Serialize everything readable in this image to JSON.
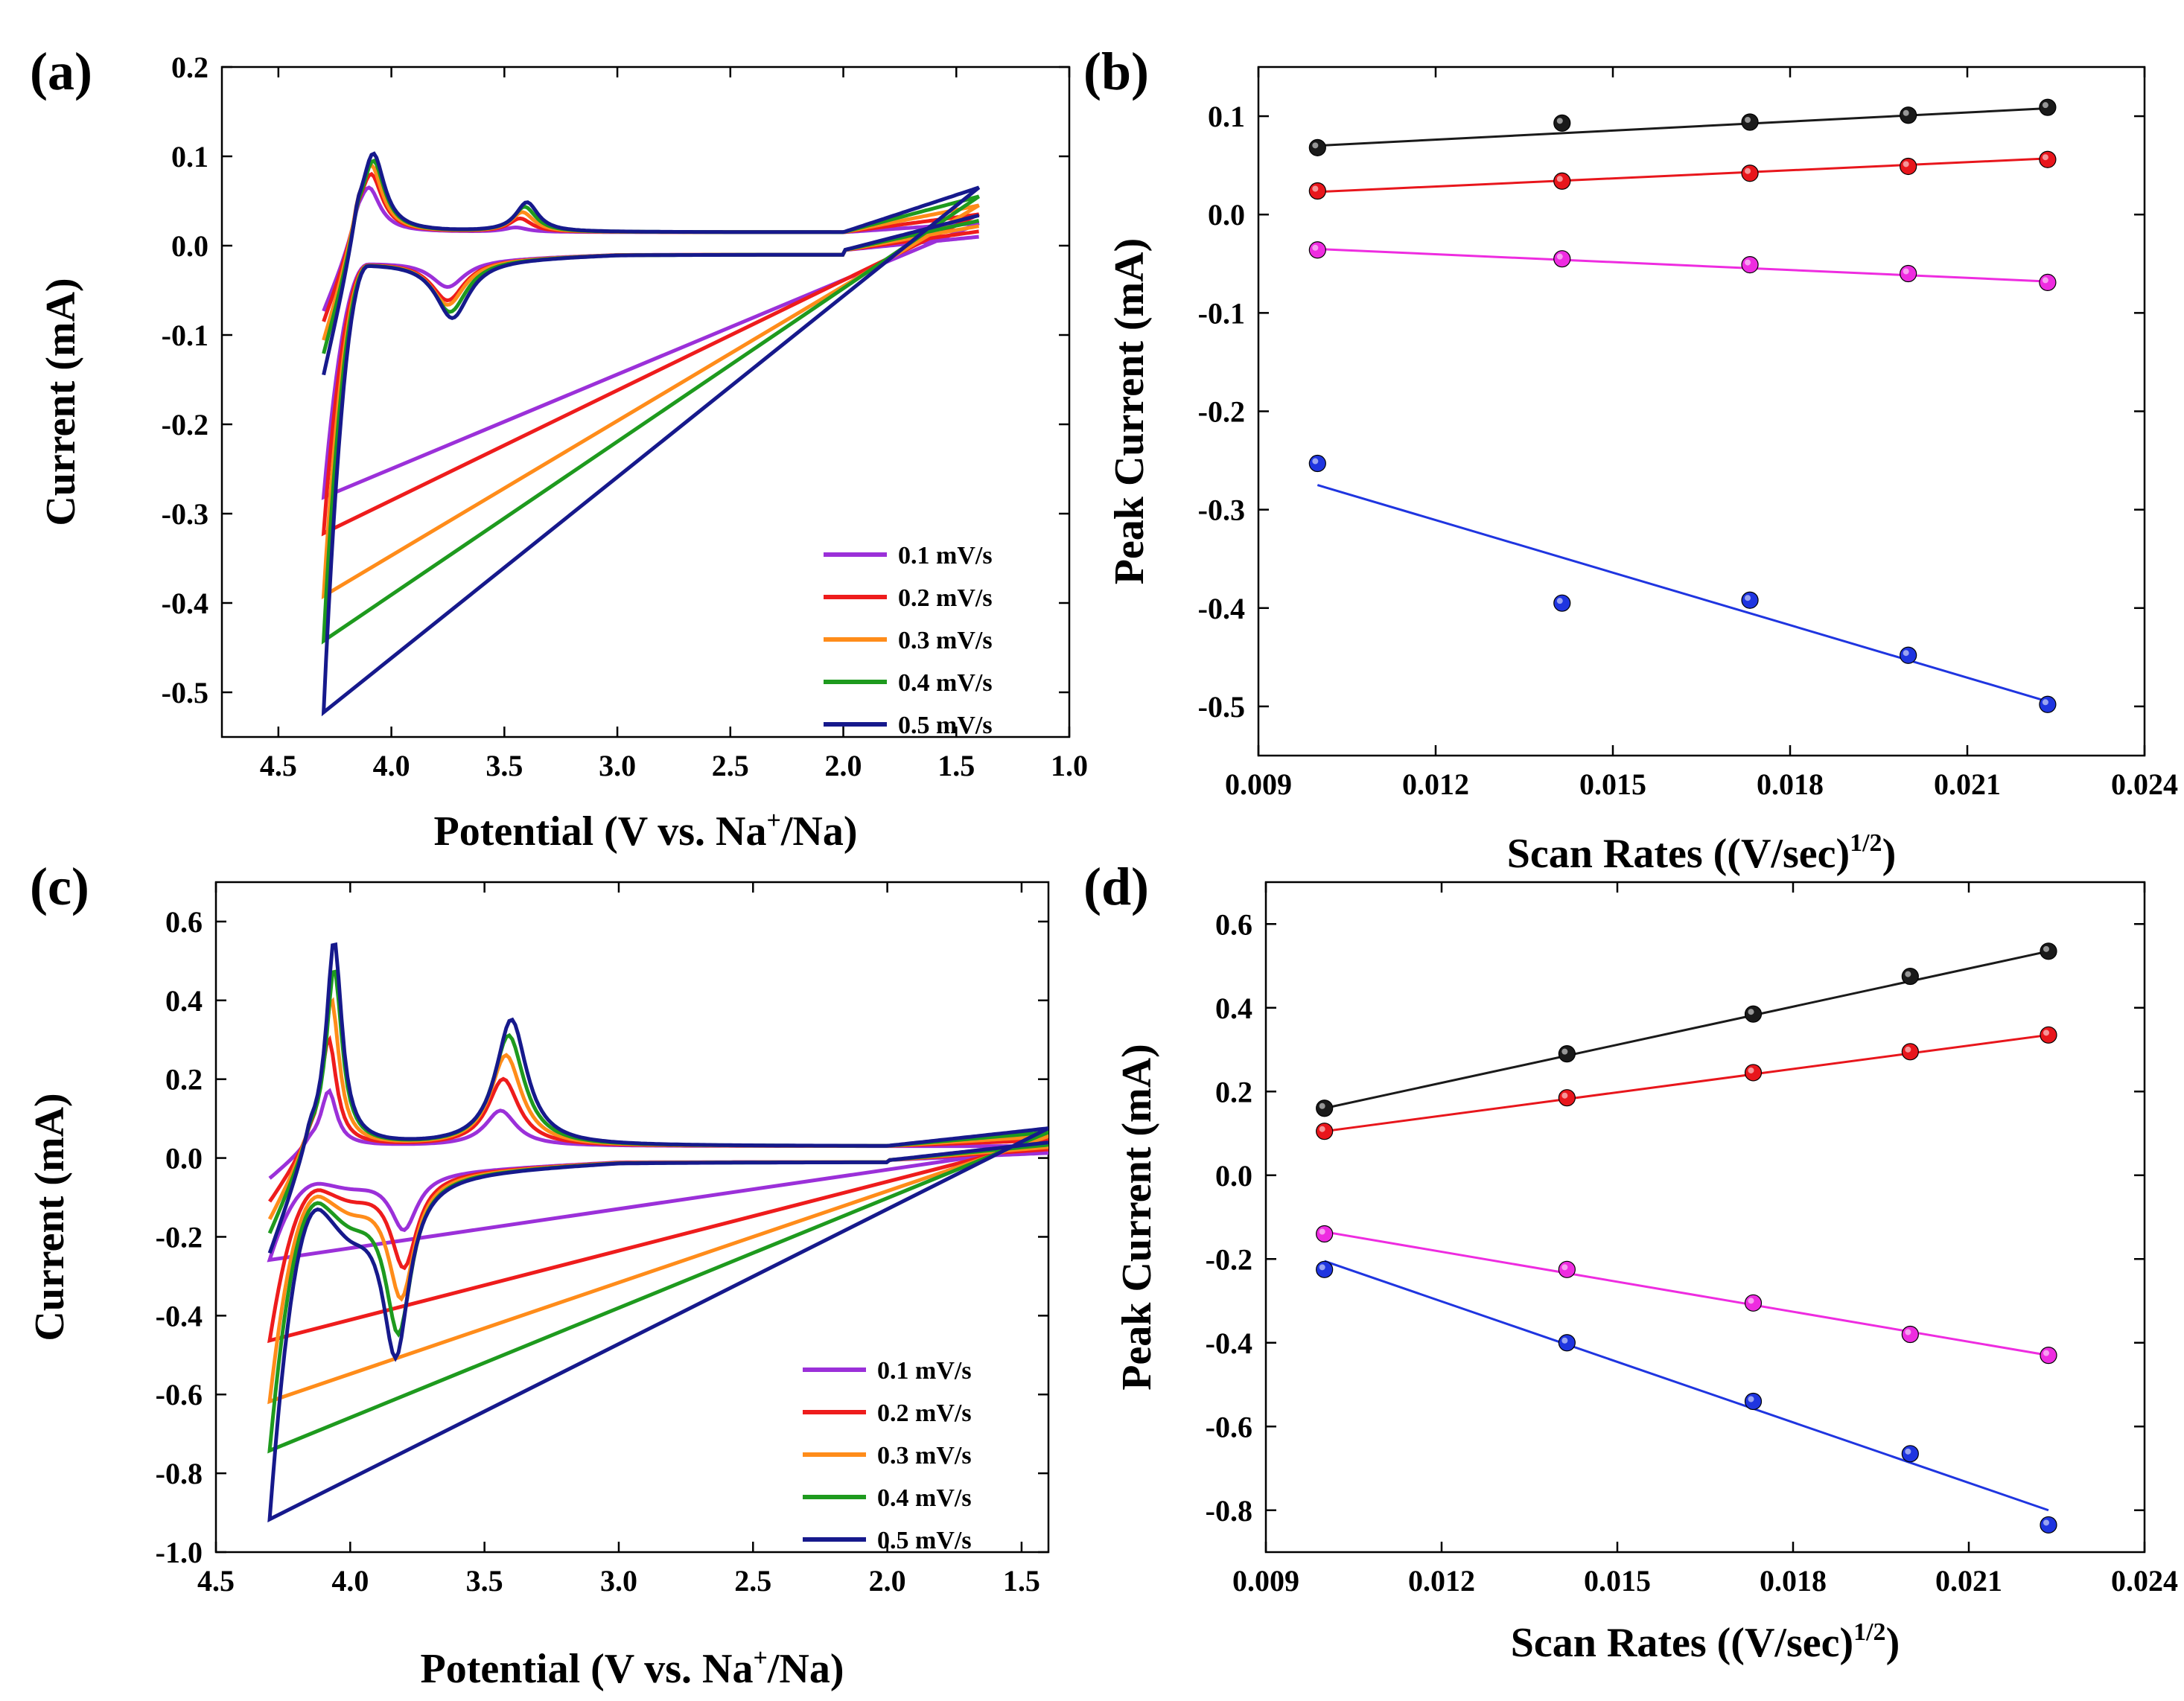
{
  "chart_data": [
    {
      "id": "a",
      "type": "line",
      "panel_label": "(a)",
      "xlabel": "Potential (V vs. Na",
      "xlabel_sup": "+",
      "xlabel_tail": "/Na)",
      "ylabel": "Current (mA)",
      "xlim": [
        4.75,
        1.0
      ],
      "ylim": [
        -0.55,
        0.2
      ],
      "xticks": [
        "4.5",
        "4.0",
        "3.5",
        "3.0",
        "2.5",
        "2.0",
        "1.5",
        "1.0"
      ],
      "xtick_values": [
        4.5,
        4.0,
        3.5,
        3.0,
        2.5,
        2.0,
        1.5,
        1.0
      ],
      "yticks": [
        "-0.5",
        "-0.4",
        "-0.3",
        "-0.2",
        "-0.1",
        "0.0",
        "0.1",
        "0.2"
      ],
      "ytick_values": [
        -0.5,
        -0.4,
        -0.3,
        -0.2,
        -0.1,
        0.0,
        0.1,
        0.2
      ],
      "legend": [
        "0.1 mV/s",
        "0.2 mV/s",
        "0.3 mV/s",
        "0.4 mV/s",
        "0.5 mV/s"
      ],
      "series": [
        {
          "name": "0.1 mV/s",
          "color": "#9b30d9",
          "ox_peak": [
            4.1,
            0.07
          ],
          "ox2_peak": [
            3.45,
            0.025
          ],
          "red_peak": [
            3.75,
            -0.03
          ],
          "tail_current": 0.025,
          "min_current": -0.26
        },
        {
          "name": "0.2 mV/s",
          "color": "#ee1c1c",
          "ox_peak": [
            4.09,
            0.085
          ],
          "ox2_peak": [
            3.43,
            0.035
          ],
          "red_peak": [
            3.75,
            -0.045
          ],
          "tail_current": 0.035,
          "min_current": -0.3
        },
        {
          "name": "0.3 mV/s",
          "color": "#ff8c1a",
          "ox_peak": [
            4.09,
            0.095
          ],
          "ox2_peak": [
            3.42,
            0.042
          ],
          "red_peak": [
            3.75,
            -0.05
          ],
          "tail_current": 0.045,
          "min_current": -0.37
        },
        {
          "name": "0.4 mV/s",
          "color": "#1e9a1e",
          "ox_peak": [
            4.08,
            0.1
          ],
          "ox2_peak": [
            3.41,
            0.048
          ],
          "red_peak": [
            3.74,
            -0.058
          ],
          "tail_current": 0.055,
          "min_current": -0.42
        },
        {
          "name": "0.5 mV/s",
          "color": "#16198c",
          "ox_peak": [
            4.08,
            0.108
          ],
          "ox2_peak": [
            3.4,
            0.053
          ],
          "red_peak": [
            3.73,
            -0.065
          ],
          "tail_current": 0.065,
          "min_current": -0.5
        }
      ]
    },
    {
      "id": "b",
      "type": "scatter",
      "panel_label": "(b)",
      "xlabel": "Scan Rates ((V/sec)",
      "xlabel_sup": "1/2",
      "xlabel_tail": ")",
      "ylabel": "Peak Current (mA)",
      "xlim": [
        0.009,
        0.024
      ],
      "ylim": [
        -0.55,
        0.15
      ],
      "xticks": [
        "0.009",
        "0.012",
        "0.015",
        "0.018",
        "0.021",
        "0.024"
      ],
      "xtick_values": [
        0.009,
        0.012,
        0.015,
        0.018,
        0.021,
        0.024
      ],
      "yticks": [
        "-0.5",
        "-0.4",
        "-0.3",
        "-0.2",
        "-0.1",
        "0.0",
        "0.1"
      ],
      "ytick_values": [
        -0.5,
        -0.4,
        -0.3,
        -0.2,
        -0.1,
        0.0,
        0.1
      ],
      "x": [
        0.01,
        0.01414,
        0.01732,
        0.02,
        0.02236
      ],
      "series": [
        {
          "name": "black",
          "color": "#1a1a1a",
          "values": [
            0.068,
            0.093,
            0.094,
            0.101,
            0.109
          ],
          "fit": [
            0.07,
            0.108
          ]
        },
        {
          "name": "red",
          "color": "#e8161c",
          "values": [
            0.024,
            0.034,
            0.042,
            0.049,
            0.056
          ],
          "fit": [
            0.023,
            0.057
          ]
        },
        {
          "name": "magenta",
          "color": "#ee2ce0",
          "values": [
            -0.036,
            -0.045,
            -0.051,
            -0.06,
            -0.069
          ],
          "fit": [
            -0.035,
            -0.068
          ]
        },
        {
          "name": "blue",
          "color": "#1f35e0",
          "values": [
            -0.253,
            -0.395,
            -0.392,
            -0.448,
            -0.498
          ],
          "fit": [
            -0.275,
            -0.495
          ]
        }
      ]
    },
    {
      "id": "c",
      "type": "line",
      "panel_label": "(c)",
      "xlabel": "Potential (V vs. Na",
      "xlabel_sup": "+",
      "xlabel_tail": "/Na)",
      "ylabel": "Current (mA)",
      "xlim": [
        4.5,
        1.4
      ],
      "ylim": [
        -1.0,
        0.7
      ],
      "xticks": [
        "4.5",
        "4.0",
        "3.5",
        "3.0",
        "2.5",
        "2.0",
        "1.5"
      ],
      "xtick_values": [
        4.5,
        4.0,
        3.5,
        3.0,
        2.5,
        2.0,
        1.5
      ],
      "yticks": [
        "-1.0",
        "-0.8",
        "-0.6",
        "-0.4",
        "-0.2",
        "0.0",
        "0.2",
        "0.4",
        "0.6"
      ],
      "ytick_values": [
        -1.0,
        -0.8,
        -0.6,
        -0.4,
        -0.2,
        0.0,
        0.2,
        0.4,
        0.6
      ],
      "legend": [
        "0.1 mV/s",
        "0.2 mV/s",
        "0.3 mV/s",
        "0.4 mV/s",
        "0.5 mV/s"
      ],
      "series": [
        {
          "name": "0.1 mV/s",
          "color": "#9b30d9",
          "ox_peak": [
            4.08,
            0.16
          ],
          "ox2_peak": [
            3.44,
            0.11
          ],
          "red_peak": [
            3.8,
            -0.14
          ],
          "red2_peak": [
            4.0,
            -0.04
          ],
          "tail_current": 0.03,
          "min_current": -0.2
        },
        {
          "name": "0.2 mV/s",
          "color": "#ee1c1c",
          "ox_peak": [
            4.08,
            0.29
          ],
          "ox2_peak": [
            3.43,
            0.19
          ],
          "red_peak": [
            3.8,
            -0.23
          ],
          "red2_peak": [
            4.0,
            -0.08
          ],
          "tail_current": 0.045,
          "min_current": -0.4
        },
        {
          "name": "0.3 mV/s",
          "color": "#ff8c1a",
          "ox_peak": [
            4.07,
            0.39
          ],
          "ox2_peak": [
            3.42,
            0.25
          ],
          "red_peak": [
            3.81,
            -0.3
          ],
          "red2_peak": [
            4.0,
            -0.12
          ],
          "tail_current": 0.055,
          "min_current": -0.55
        },
        {
          "name": "0.4 mV/s",
          "color": "#1e9a1e",
          "ox_peak": [
            4.06,
            0.47
          ],
          "ox2_peak": [
            3.41,
            0.3
          ],
          "red_peak": [
            3.82,
            -0.38
          ],
          "red2_peak": [
            4.0,
            -0.16
          ],
          "tail_current": 0.065,
          "min_current": -0.67
        },
        {
          "name": "0.5 mV/s",
          "color": "#16198c",
          "ox_peak": [
            4.06,
            0.54
          ],
          "ox2_peak": [
            3.4,
            0.34
          ],
          "red_peak": [
            3.83,
            -0.43
          ],
          "red2_peak": [
            4.0,
            -0.2
          ],
          "tail_current": 0.075,
          "min_current": -0.84
        }
      ]
    },
    {
      "id": "d",
      "type": "scatter",
      "panel_label": "(d)",
      "xlabel": "Scan Rates ((V/sec)",
      "xlabel_sup": "1/2",
      "xlabel_tail": ")",
      "ylabel": "Peak Current (mA)",
      "xlim": [
        0.009,
        0.024
      ],
      "ylim": [
        -0.9,
        0.7
      ],
      "xticks": [
        "0.009",
        "0.012",
        "0.015",
        "0.018",
        "0.021",
        "0.024"
      ],
      "xtick_values": [
        0.009,
        0.012,
        0.015,
        0.018,
        0.021,
        0.024
      ],
      "yticks": [
        "-0.8",
        "-0.6",
        "-0.4",
        "-0.2",
        "0.0",
        "0.2",
        "0.4",
        "0.6"
      ],
      "ytick_values": [
        -0.8,
        -0.6,
        -0.4,
        -0.2,
        0.0,
        0.2,
        0.4,
        0.6
      ],
      "x": [
        0.01,
        0.01414,
        0.01732,
        0.02,
        0.02236
      ],
      "series": [
        {
          "name": "black",
          "color": "#1a1a1a",
          "values": [
            0.16,
            0.29,
            0.385,
            0.475,
            0.535
          ],
          "fit": [
            0.16,
            0.535
          ]
        },
        {
          "name": "red",
          "color": "#e8161c",
          "values": [
            0.105,
            0.185,
            0.245,
            0.295,
            0.335
          ],
          "fit": [
            0.105,
            0.335
          ]
        },
        {
          "name": "magenta",
          "color": "#ee2ce0",
          "values": [
            -0.14,
            -0.225,
            -0.305,
            -0.38,
            -0.43
          ],
          "fit": [
            -0.135,
            -0.43
          ]
        },
        {
          "name": "blue",
          "color": "#1f35e0",
          "values": [
            -0.225,
            -0.4,
            -0.54,
            -0.665,
            -0.835
          ],
          "fit": [
            -0.205,
            -0.8
          ]
        }
      ]
    }
  ]
}
